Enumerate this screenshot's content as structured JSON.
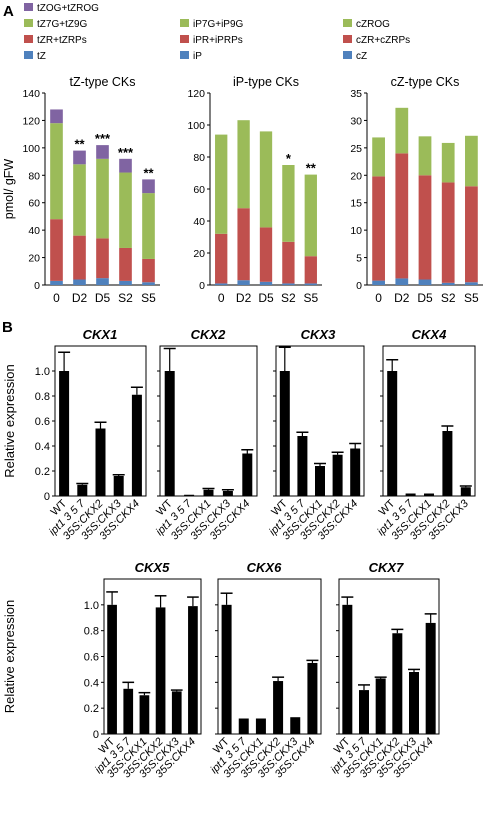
{
  "panel_labels": {
    "a": "A",
    "b": "B"
  },
  "colors": {
    "green": "#9BBB59",
    "red": "#C0504D",
    "blue": "#4F81BD",
    "purple": "#8064A2",
    "black": "#000000"
  },
  "legend": {
    "col1": [
      "tZOG+tZROG",
      "tZ7G+tZ9G",
      "tZR+tZRPs",
      "tZ"
    ],
    "col2": [
      "iP7G+iP9G",
      "iPR+iPRPs",
      "iP"
    ],
    "col3": [
      "cZROG",
      "cZR+cZRPs",
      "cZ"
    ]
  },
  "chart_data": [
    {
      "type": "bar",
      "stacked": true,
      "title": "tZ-type CKs",
      "ylabel": "pmol/ gFW",
      "categories": [
        "0",
        "D2",
        "D5",
        "S2",
        "S5"
      ],
      "ylim": [
        0,
        140
      ],
      "yticks": [
        0,
        20,
        40,
        60,
        80,
        100,
        120,
        140
      ],
      "series": [
        {
          "name": "tZ",
          "color": "#4F81BD",
          "values": [
            3,
            4,
            5,
            3,
            2
          ]
        },
        {
          "name": "tZR+tZRPs",
          "color": "#C0504D",
          "values": [
            45,
            32,
            29,
            24,
            17
          ]
        },
        {
          "name": "tZ7G+tZ9G",
          "color": "#9BBB59",
          "values": [
            70,
            52,
            58,
            55,
            48
          ]
        },
        {
          "name": "tZOG+tZROG",
          "color": "#8064A2",
          "values": [
            10,
            10,
            10,
            10,
            10
          ]
        }
      ],
      "significance": [
        "",
        "**",
        "***",
        "***",
        "**"
      ]
    },
    {
      "type": "bar",
      "stacked": true,
      "title": "iP-type CKs",
      "ylabel": "",
      "categories": [
        "0",
        "D2",
        "D5",
        "S2",
        "S5"
      ],
      "ylim": [
        0,
        120
      ],
      "yticks": [
        0,
        20,
        40,
        60,
        80,
        100,
        120
      ],
      "series": [
        {
          "name": "iP",
          "color": "#4F81BD",
          "values": [
            1,
            3,
            2,
            1,
            1
          ]
        },
        {
          "name": "iPR+iPRPs",
          "color": "#C0504D",
          "values": [
            31,
            45,
            34,
            26,
            17
          ]
        },
        {
          "name": "iP7G+iP9G",
          "color": "#9BBB59",
          "values": [
            62,
            55,
            60,
            48,
            51
          ]
        }
      ],
      "significance": [
        "",
        "",
        "",
        "*",
        "**"
      ]
    },
    {
      "type": "bar",
      "stacked": true,
      "title": "cZ-type CKs",
      "ylabel": "",
      "categories": [
        "0",
        "D2",
        "D5",
        "S2",
        "S5"
      ],
      "ylim": [
        0,
        35
      ],
      "yticks": [
        0,
        5,
        10,
        15,
        20,
        25,
        30,
        35
      ],
      "series": [
        {
          "name": "cZ",
          "color": "#4F81BD",
          "values": [
            0.8,
            1.2,
            1.0,
            0.4,
            0.5
          ]
        },
        {
          "name": "cZR+cZRPs",
          "color": "#C0504D",
          "values": [
            19.0,
            22.8,
            19.0,
            18.3,
            17.5
          ]
        },
        {
          "name": "cZROG",
          "color": "#9BBB59",
          "values": [
            7.1,
            8.3,
            7.1,
            7.2,
            9.2
          ]
        }
      ],
      "significance": [
        "",
        "",
        "",
        "",
        ""
      ]
    },
    {
      "type": "bar",
      "title": "CKX1",
      "ylabel": "Relative expression",
      "ylim": [
        0,
        1.2
      ],
      "yticks": [
        0,
        0.2,
        0.4,
        0.6,
        0.8,
        1.0
      ],
      "categories": [
        "WT",
        "ipt1 3 5 7",
        "35S:CKX2",
        "35S:CKX3",
        "35S:CKX4"
      ],
      "values": [
        1.0,
        0.09,
        0.54,
        0.16,
        0.81
      ],
      "errors": [
        0.15,
        0.01,
        0.05,
        0.01,
        0.06
      ]
    },
    {
      "type": "bar",
      "title": "CKX2",
      "ylabel": "",
      "ylim": [
        0,
        1.2
      ],
      "categories": [
        "WT",
        "ipt1 3 5 7",
        "35S:CKX1",
        "35S:CKX3",
        "35S:CKX4"
      ],
      "values": [
        1.0,
        0.01,
        0.05,
        0.04,
        0.34
      ],
      "errors": [
        0.18,
        0.0,
        0.01,
        0.01,
        0.03
      ]
    },
    {
      "type": "bar",
      "title": "CKX3",
      "ylabel": "",
      "ylim": [
        0,
        1.2
      ],
      "categories": [
        "WT",
        "ipt1 3 5 7",
        "35S:CKX1",
        "35S:CKX2",
        "35S:CKX4"
      ],
      "values": [
        1.0,
        0.48,
        0.24,
        0.33,
        0.38
      ],
      "errors": [
        0.19,
        0.03,
        0.02,
        0.02,
        0.04
      ]
    },
    {
      "type": "bar",
      "title": "CKX4",
      "ylabel": "",
      "ylim": [
        0,
        1.2
      ],
      "categories": [
        "WT",
        "ipt1 3 5 7",
        "35S:CKX1",
        "35S:CKX2",
        "35S:CKX3"
      ],
      "values": [
        1.0,
        0.02,
        0.02,
        0.52,
        0.07
      ],
      "errors": [
        0.09,
        0.0,
        0.0,
        0.04,
        0.01
      ]
    },
    {
      "type": "bar",
      "title": "CKX5",
      "ylabel": "Relative expression",
      "ylim": [
        0,
        1.2
      ],
      "yticks": [
        0,
        0.2,
        0.4,
        0.6,
        0.8,
        1.0
      ],
      "categories": [
        "WT",
        "ipt1 3 5 7",
        "35S:CKX1",
        "35S:CKX2",
        "35S:CKX3",
        "35S:CKX4"
      ],
      "values": [
        1.0,
        0.35,
        0.3,
        0.98,
        0.33,
        0.99
      ],
      "errors": [
        0.1,
        0.05,
        0.02,
        0.09,
        0.01,
        0.07
      ]
    },
    {
      "type": "bar",
      "title": "CKX6",
      "ylabel": "",
      "ylim": [
        0,
        1.2
      ],
      "categories": [
        "WT",
        "ipt1 3 5 7",
        "35S:CKX1",
        "35S:CKX2",
        "35S:CKX3",
        "35S:CKX4"
      ],
      "values": [
        1.0,
        0.12,
        0.12,
        0.41,
        0.13,
        0.55
      ],
      "errors": [
        0.09,
        0.0,
        0.0,
        0.03,
        0.0,
        0.02
      ]
    },
    {
      "type": "bar",
      "title": "CKX7",
      "ylabel": "",
      "ylim": [
        0,
        1.2
      ],
      "categories": [
        "WT",
        "ipt1 3 5 7",
        "35S:CKX1",
        "35S:CKX2",
        "35S:CKX3",
        "35S:CKX4"
      ],
      "values": [
        1.0,
        0.34,
        0.43,
        0.78,
        0.48,
        0.86
      ],
      "errors": [
        0.06,
        0.04,
        0.01,
        0.03,
        0.02,
        0.07
      ]
    }
  ]
}
